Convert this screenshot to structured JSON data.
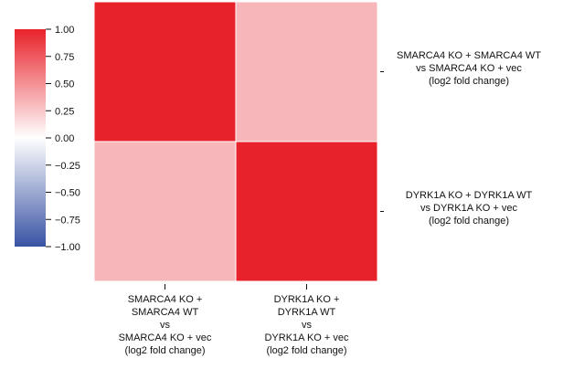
{
  "chart_data": {
    "type": "heatmap",
    "rows": [
      [
        "SMARCA4 KO + SMARCA4 WT",
        "vs SMARCA4 KO + vec",
        "(log2 fold change)"
      ],
      [
        "DYRK1A KO + DYRK1A WT",
        "vs DYRK1A KO + vec",
        "(log2 fold change)"
      ]
    ],
    "columns": [
      [
        "SMARCA4 KO +",
        "SMARCA4 WT",
        "vs",
        "SMARCA4 KO + vec",
        "(log2 fold change)"
      ],
      [
        "DYRK1A KO +",
        "DYRK1A WT",
        "vs",
        "DYRK1A KO + vec",
        "(log2 fold change)"
      ]
    ],
    "values": [
      [
        1.0,
        0.33
      ],
      [
        0.33,
        1.0
      ]
    ],
    "colorbar": {
      "range": [
        -1.0,
        1.0
      ],
      "ticks": [
        "1.00",
        "0.75",
        "0.50",
        "0.25",
        "0.00",
        "−0.25",
        "−0.50",
        "−0.75",
        "−1.00"
      ],
      "colors": {
        "high": "#e8222a",
        "mid": "#ffffff",
        "low": "#3953a4"
      }
    },
    "cell_border_color": "#ffffff"
  }
}
